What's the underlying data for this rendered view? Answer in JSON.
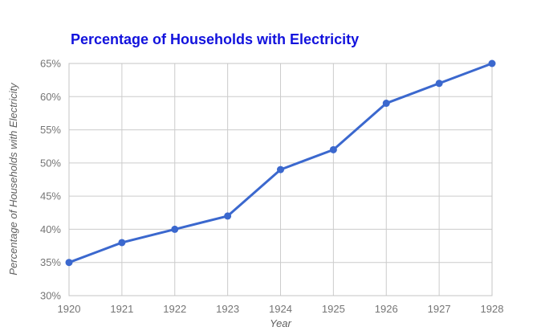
{
  "chart_data": {
    "type": "line",
    "title": "Percentage of Households with Electricity",
    "xlabel": "Year",
    "ylabel": "Percentage of Households with Electricity",
    "categories": [
      "1920",
      "1921",
      "1922",
      "1923",
      "1924",
      "1925",
      "1926",
      "1927",
      "1928"
    ],
    "series": [
      {
        "name": "Percentage of Households with Electricity",
        "values": [
          35,
          38,
          40,
          42,
          49,
          52,
          59,
          62,
          65
        ]
      }
    ],
    "ylim": [
      30,
      65
    ],
    "yticks": [
      {
        "value": 30,
        "label": "30%"
      },
      {
        "value": 35,
        "label": "35%"
      },
      {
        "value": 40,
        "label": "40%"
      },
      {
        "value": 45,
        "label": "45%"
      },
      {
        "value": 50,
        "label": "50%"
      },
      {
        "value": 55,
        "label": "55%"
      },
      {
        "value": 60,
        "label": "60%"
      },
      {
        "value": 65,
        "label": "65%"
      }
    ],
    "grid": true,
    "legend_position": "none",
    "colors": {
      "line": "#3b68ce",
      "point": "#3b68ce",
      "title": "#1212dd",
      "tick_label": "#757575",
      "axis_title": "#616161",
      "gridline": "#cccccc",
      "plot_border": "#c4c4c4",
      "background": "#ffffff"
    }
  }
}
